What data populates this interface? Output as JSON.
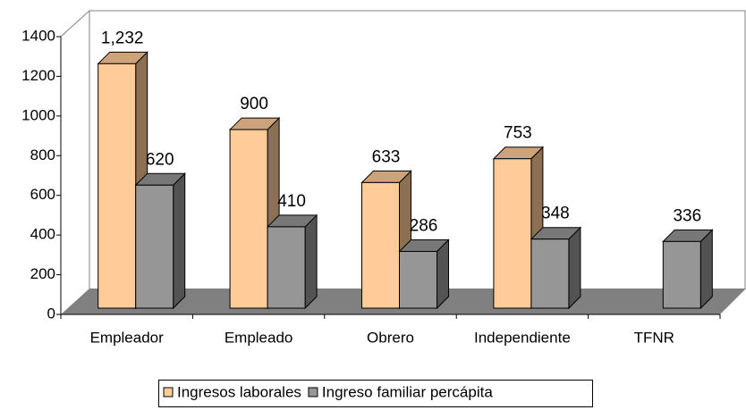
{
  "chart_data": {
    "type": "bar3d",
    "categories": [
      "Empleador",
      "Empleado",
      "Obrero",
      "Independiente",
      "TFNR"
    ],
    "series": [
      {
        "name": "Ingresos laborales",
        "color": "#ffcc99",
        "values": [
          1232,
          900,
          633,
          753,
          null
        ],
        "value_labels": [
          "1,232",
          "900",
          "633",
          "753",
          null
        ]
      },
      {
        "name": "Ingreso familiar percápita",
        "color": "#969696",
        "values": [
          620,
          410,
          286,
          348,
          336
        ]
      }
    ],
    "ylim": [
      0,
      1400
    ],
    "yticks": [
      0,
      200,
      400,
      600,
      800,
      1000,
      1200,
      1400
    ],
    "legend": "bottom"
  }
}
